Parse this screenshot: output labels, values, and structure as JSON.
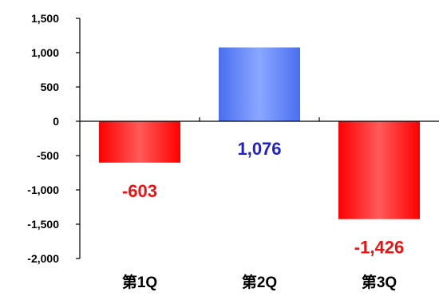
{
  "chart_data": {
    "type": "bar",
    "categories": [
      "第1Q",
      "第2Q",
      "第3Q"
    ],
    "values": [
      -603,
      1076,
      -1426
    ],
    "data_labels": [
      "-603",
      "1,076",
      "-1,426"
    ],
    "ylim": [
      -2000,
      1500
    ],
    "y_ticks": [
      1500,
      1000,
      500,
      0,
      -500,
      -1000,
      -1500,
      -2000
    ],
    "y_tick_labels": [
      "1,500",
      "1,000",
      "500",
      "0",
      "-500",
      "-1,000",
      "-1,500",
      "-2,000"
    ],
    "grid": false,
    "legend": "none",
    "colors": {
      "positive": "#6f8fff",
      "negative": "#ff2a2a",
      "positive_label": "#2020d0",
      "negative_label": "#ee1111"
    }
  }
}
